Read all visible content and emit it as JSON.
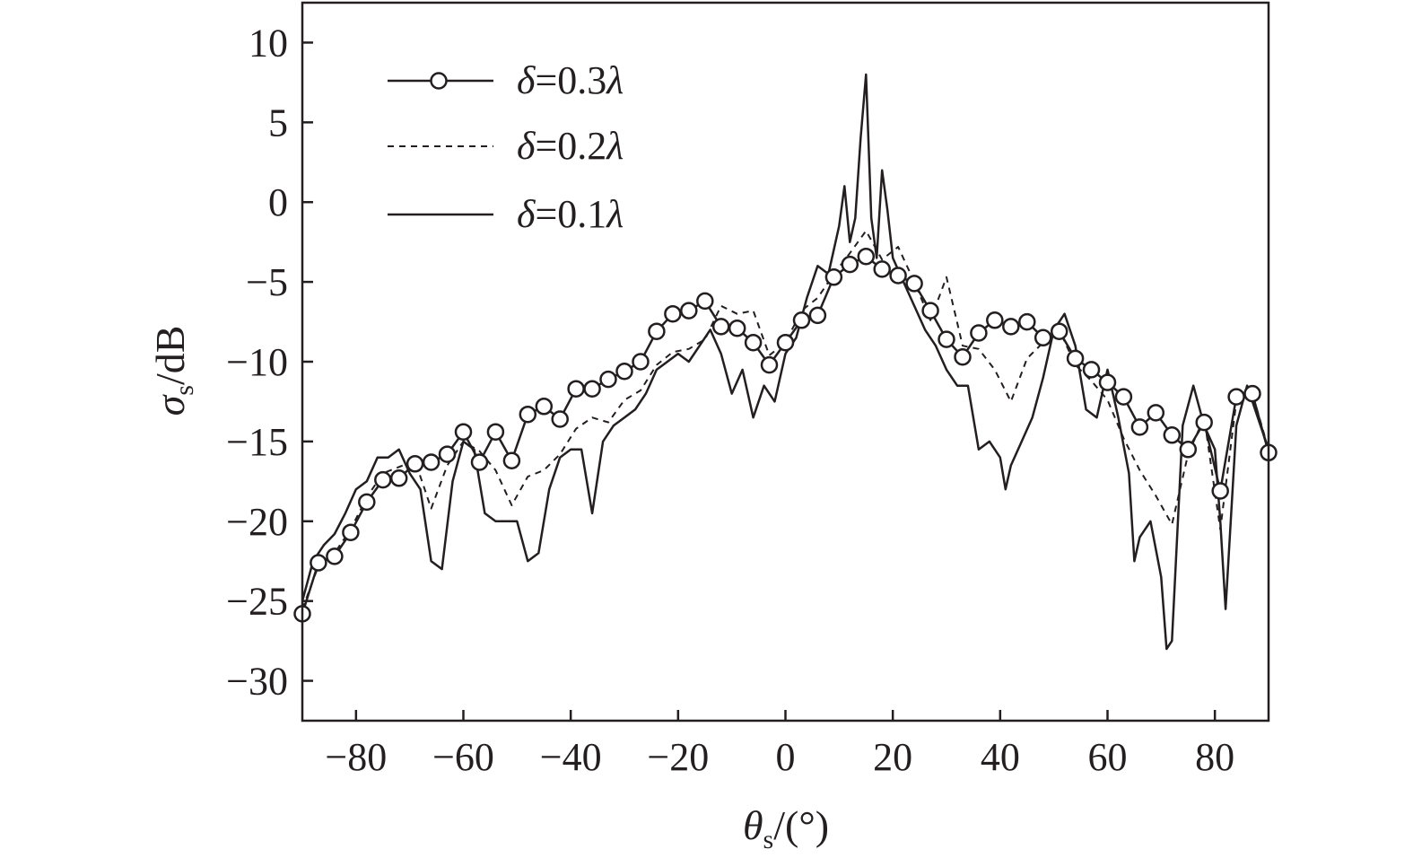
{
  "chart_data": {
    "type": "line",
    "title": "",
    "xlabel": {
      "symbol": "θ",
      "sub": "s",
      "unit": "/(°)"
    },
    "ylabel": {
      "symbol": "σ",
      "sub": "s",
      "unit": "/dB"
    },
    "xlim": [
      -90,
      90
    ],
    "ylim": [
      -32.5,
      12.5
    ],
    "xticks": [
      -80,
      -60,
      -40,
      -20,
      0,
      20,
      40,
      60,
      80
    ],
    "xtick_labels": [
      "−80",
      "−60",
      "−40",
      "−20",
      "0",
      "20",
      "40",
      "60",
      "80"
    ],
    "yticks": [
      10,
      5,
      0,
      -5,
      -10,
      -15,
      -20,
      -25,
      -30
    ],
    "ytick_labels": [
      "10",
      "5",
      "0",
      "−5",
      "−10",
      "−15",
      "−20",
      "−25",
      "−30"
    ],
    "grid": false,
    "legend_position": "top-left",
    "colors": {
      "line": "#231f20",
      "background": "#ffffff"
    },
    "series": [
      {
        "name": "δ=0.3λ",
        "label_parts": {
          "symbol": "δ",
          "eq": "=0.3",
          "unit": "λ"
        },
        "style": "solid-circle",
        "x": [
          -90,
          -87,
          -84,
          -81,
          -78,
          -75,
          -72,
          -69,
          -66,
          -63,
          -60,
          -57,
          -54,
          -51,
          -48,
          -45,
          -42,
          -39,
          -36,
          -33,
          -30,
          -27,
          -24,
          -21,
          -18,
          -15,
          -12,
          -9,
          -6,
          -3,
          0,
          3,
          6,
          9,
          12,
          15,
          18,
          21,
          24,
          27,
          30,
          33,
          36,
          39,
          42,
          45,
          48,
          51,
          54,
          57,
          60,
          63,
          66,
          69,
          72,
          75,
          78,
          81,
          84,
          87,
          90
        ],
        "y": [
          -25.8,
          -22.6,
          -22.2,
          -20.7,
          -18.8,
          -17.4,
          -17.3,
          -16.4,
          -16.3,
          -15.8,
          -14.4,
          -16.3,
          -14.4,
          -16.2,
          -13.3,
          -12.8,
          -13.6,
          -11.7,
          -11.7,
          -11.1,
          -10.6,
          -10.0,
          -8.1,
          -7.0,
          -6.8,
          -6.2,
          -7.8,
          -7.9,
          -8.8,
          -10.2,
          -8.8,
          -7.4,
          -7.1,
          -4.7,
          -3.9,
          -3.4,
          -4.2,
          -4.6,
          -5.1,
          -6.8,
          -8.6,
          -9.7,
          -8.2,
          -7.4,
          -7.8,
          -7.5,
          -8.5,
          -8.1,
          -9.8,
          -10.5,
          -11.3,
          -12.2,
          -14.1,
          -13.2,
          -14.6,
          -15.5,
          -13.8,
          -18.1,
          -12.2,
          -12.0,
          -15.7
        ]
      },
      {
        "name": "δ=0.2λ",
        "label_parts": {
          "symbol": "δ",
          "eq": "=0.2",
          "unit": "λ"
        },
        "style": "dashed",
        "x": [
          -90,
          -87,
          -84,
          -81,
          -78,
          -75,
          -72,
          -69,
          -66,
          -63,
          -60,
          -57,
          -54,
          -51,
          -48,
          -45,
          -42,
          -39,
          -36,
          -33,
          -30,
          -27,
          -24,
          -21,
          -18,
          -15,
          -12,
          -9,
          -6,
          -3,
          0,
          3,
          6,
          9,
          12,
          15,
          18,
          21,
          24,
          27,
          30,
          33,
          36,
          39,
          42,
          45,
          48,
          51,
          54,
          57,
          60,
          63,
          66,
          69,
          72,
          75,
          78,
          81,
          84,
          87,
          90
        ],
        "y": [
          -25.5,
          -22.8,
          -22.0,
          -20.5,
          -18.5,
          -17.0,
          -16.6,
          -16.2,
          -19.2,
          -16.5,
          -15.0,
          -15.6,
          -16.8,
          -19.0,
          -17.2,
          -16.8,
          -15.8,
          -14.2,
          -13.5,
          -13.8,
          -12.4,
          -11.8,
          -10.2,
          -9.4,
          -9.2,
          -8.6,
          -6.5,
          -7.0,
          -6.8,
          -9.6,
          -8.8,
          -6.8,
          -6.0,
          -4.5,
          -3.2,
          -1.8,
          -3.6,
          -2.8,
          -5.0,
          -7.4,
          -4.7,
          -9.0,
          -9.2,
          -10.5,
          -12.5,
          -9.8,
          -8.8,
          -8.0,
          -10.2,
          -11.2,
          -12.4,
          -14.8,
          -16.8,
          -18.4,
          -20.2,
          -15.8,
          -13.5,
          -20.5,
          -12.5,
          -12.0,
          -15.5
        ]
      },
      {
        "name": "δ=0.1λ",
        "label_parts": {
          "symbol": "δ",
          "eq": "=0.1",
          "unit": "λ"
        },
        "style": "solid",
        "x": [
          -90,
          -88,
          -86,
          -84,
          -82,
          -80,
          -78,
          -76,
          -74,
          -72,
          -70,
          -68,
          -66,
          -64,
          -62,
          -60,
          -58,
          -56,
          -54,
          -52,
          -50,
          -48,
          -46,
          -44,
          -42,
          -40,
          -38,
          -36,
          -34,
          -32,
          -30,
          -28,
          -26,
          -24,
          -22,
          -20,
          -18,
          -16,
          -14,
          -12,
          -10,
          -8,
          -6,
          -4,
          -2,
          0,
          2,
          4,
          6,
          8,
          10,
          11,
          12,
          13,
          14,
          15,
          16,
          17,
          18,
          19,
          20,
          22,
          24,
          26,
          28,
          30,
          32,
          34,
          36,
          38,
          40,
          41,
          42,
          44,
          46,
          48,
          50,
          52,
          54,
          56,
          58,
          60,
          62,
          64,
          65,
          66,
          68,
          70,
          71,
          72,
          74,
          76,
          78,
          80,
          81,
          82,
          84,
          86,
          88,
          90
        ],
        "y": [
          -25.0,
          -22.5,
          -21.5,
          -20.8,
          -19.5,
          -18.0,
          -17.5,
          -16.0,
          -16.0,
          -15.5,
          -17.0,
          -18.0,
          -22.5,
          -23.0,
          -17.5,
          -15.0,
          -15.5,
          -19.5,
          -20.0,
          -20.0,
          -20.0,
          -22.5,
          -22.0,
          -18.0,
          -16.0,
          -15.5,
          -15.5,
          -19.5,
          -15.0,
          -14.0,
          -13.5,
          -13.0,
          -12.0,
          -10.5,
          -10.0,
          -9.5,
          -10.0,
          -9.0,
          -8.0,
          -9.5,
          -12.0,
          -10.5,
          -13.5,
          -11.5,
          -12.5,
          -9.5,
          -8.5,
          -6.0,
          -4.0,
          -4.5,
          -1.5,
          1.0,
          -2.5,
          -1.0,
          4.0,
          8.0,
          -1.0,
          -3.5,
          2.0,
          -0.5,
          -3.5,
          -5.0,
          -6.5,
          -8.0,
          -9.0,
          -10.5,
          -11.5,
          -11.5,
          -15.5,
          -15.0,
          -16.0,
          -18.0,
          -16.5,
          -15.0,
          -13.5,
          -11.0,
          -8.0,
          -7.0,
          -9.0,
          -13.0,
          -13.5,
          -10.5,
          -13.5,
          -17.0,
          -22.5,
          -21.0,
          -20.0,
          -23.5,
          -28.0,
          -27.5,
          -14.0,
          -11.5,
          -14.0,
          -15.5,
          -20.0,
          -25.5,
          -14.0,
          -11.5,
          -13.5,
          -15.5
        ]
      }
    ]
  }
}
